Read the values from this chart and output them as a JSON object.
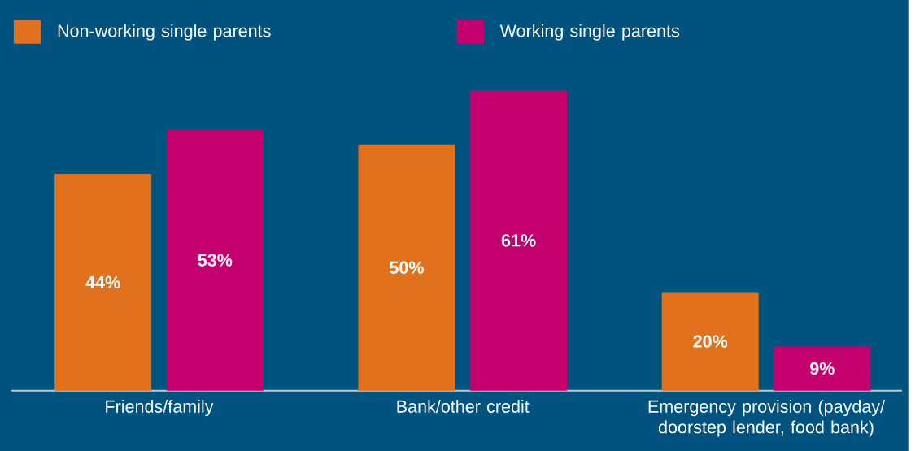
{
  "chart_data": {
    "type": "bar",
    "categories": [
      "Friends/family",
      "Bank/other credit",
      "Emergency provision (payday/ doorstep lender, food bank)"
    ],
    "series": [
      {
        "name": "Non-working single parents",
        "color": "#e2711d",
        "values": [
          44,
          50,
          20
        ],
        "value_labels": [
          "44%",
          "50%",
          "20%"
        ]
      },
      {
        "name": "Working single parents",
        "color": "#c4006e",
        "values": [
          53,
          61,
          9
        ],
        "value_labels": [
          "53%",
          "61%",
          "9%"
        ]
      }
    ],
    "legend": "top"
  }
}
